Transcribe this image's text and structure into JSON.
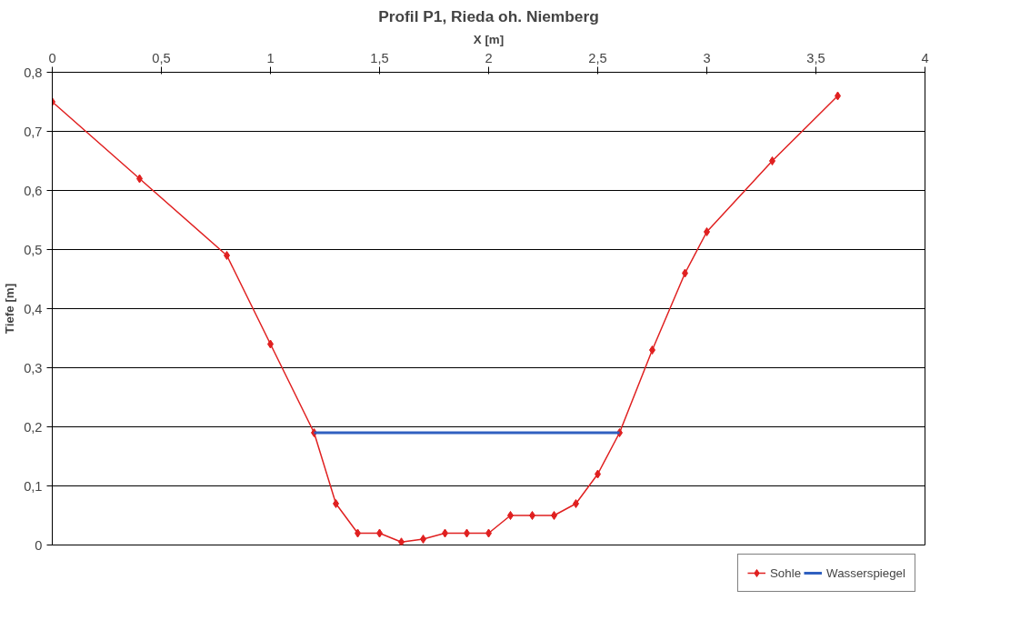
{
  "chart_data": {
    "type": "line",
    "title": "Profil P1, Rieda oh. Niemberg",
    "xlabel": "X [m]",
    "ylabel": "Tiefe [m]",
    "xlim": [
      0,
      4
    ],
    "xticks": [
      0,
      {
        "value": 0.5,
        "label": "0,5"
      },
      1,
      {
        "value": 1.5,
        "label": "1,5"
      },
      2,
      {
        "value": 2.5,
        "label": "2,5"
      },
      3,
      {
        "value": 3.5,
        "label": "3,5"
      },
      4
    ],
    "ylim": [
      0,
      0.8
    ],
    "yticks": [
      0,
      {
        "value": 0.1,
        "label": "0,1"
      },
      {
        "value": 0.2,
        "label": "0,2"
      },
      {
        "value": 0.3,
        "label": "0,3"
      },
      {
        "value": 0.4,
        "label": "0,4"
      },
      {
        "value": 0.5,
        "label": "0,5"
      },
      {
        "value": 0.6,
        "label": "0,6"
      },
      {
        "value": 0.7,
        "label": "0,7"
      },
      {
        "value": 0.8,
        "label": "0,8"
      }
    ],
    "grid": "y",
    "legend": "bottom",
    "series": [
      {
        "name": "Sohle",
        "color": "#e02020",
        "marker": "diamond",
        "x": [
          0,
          0.4,
          0.8,
          1.0,
          1.2,
          1.3,
          1.4,
          1.5,
          1.6,
          1.7,
          1.8,
          1.9,
          2.0,
          2.1,
          2.2,
          2.3,
          2.4,
          2.5,
          2.6,
          2.75,
          2.9,
          3.0,
          3.3,
          3.6
        ],
        "values": [
          0.75,
          0.62,
          0.49,
          0.34,
          0.19,
          0.07,
          0.02,
          0.02,
          0.005,
          0.01,
          0.02,
          0.02,
          0.02,
          0.05,
          0.05,
          0.05,
          0.07,
          0.12,
          0.19,
          0.33,
          0.46,
          0.53,
          0.65,
          0.76
        ]
      },
      {
        "name": "Wasserspiegel",
        "color": "#3060c0",
        "marker": "none",
        "x": [
          1.2,
          2.6
        ],
        "values": [
          0.19,
          0.19
        ]
      }
    ]
  }
}
